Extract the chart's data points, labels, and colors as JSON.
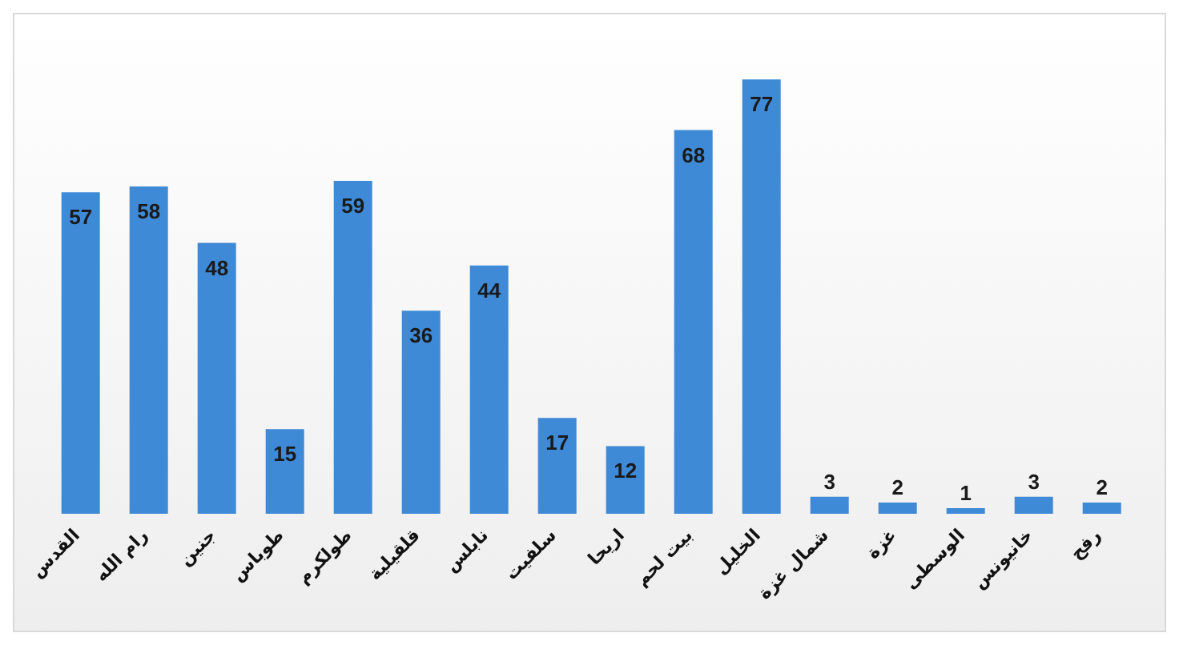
{
  "chart_data": {
    "type": "bar",
    "categories": [
      "القدس",
      "رام الله",
      "جنين",
      "طوباس",
      "طولكرم",
      "قلقيلية",
      "نابلس",
      "سلفيت",
      "اريحا",
      "بيت لحم",
      "الخليل",
      "شمال غزة",
      "غزة",
      "الوسطى",
      "خانيونس",
      "رفح"
    ],
    "values": [
      57,
      58,
      48,
      15,
      59,
      36,
      44,
      17,
      12,
      68,
      77,
      3,
      2,
      1,
      3,
      2
    ],
    "color": "#3f8ad6",
    "data_labels": true,
    "grid": false,
    "legend": false
  }
}
